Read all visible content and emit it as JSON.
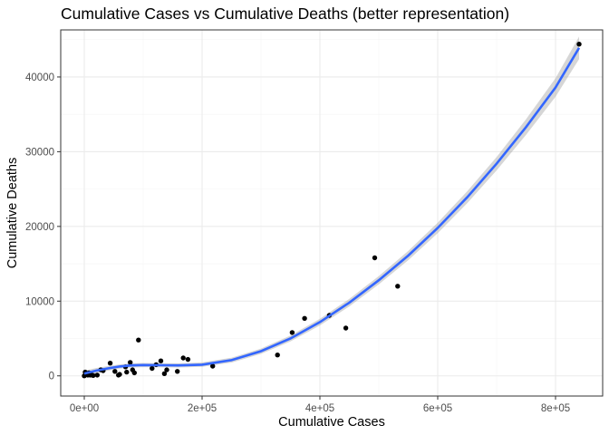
{
  "chart_data": {
    "type": "scatter",
    "title": "Cumulative Cases vs Cumulative Deaths (better representation)",
    "xlabel": "Cumulative Cases",
    "ylabel": "Cumulative Deaths",
    "xlim": [
      -40000,
      880000
    ],
    "ylim": [
      -2700,
      46300
    ],
    "x_ticks": [
      {
        "value": 0,
        "label": "0e+00"
      },
      {
        "value": 200000,
        "label": "2e+05"
      },
      {
        "value": 400000,
        "label": "4e+05"
      },
      {
        "value": 600000,
        "label": "6e+05"
      },
      {
        "value": 800000,
        "label": "8e+05"
      }
    ],
    "y_ticks": [
      {
        "value": 0,
        "label": "0"
      },
      {
        "value": 10000,
        "label": "10000"
      },
      {
        "value": 20000,
        "label": "20000"
      },
      {
        "value": 30000,
        "label": "30000"
      },
      {
        "value": 40000,
        "label": "40000"
      }
    ],
    "x_minor": [
      -100000,
      100000,
      300000,
      500000,
      700000
    ],
    "y_minor": [
      5000,
      15000,
      25000,
      35000,
      45000
    ],
    "grid": true,
    "points": [
      {
        "x": 0,
        "y": 0
      },
      {
        "x": 1500,
        "y": 500
      },
      {
        "x": 3000,
        "y": 200
      },
      {
        "x": 5000,
        "y": 300
      },
      {
        "x": 6000,
        "y": 100
      },
      {
        "x": 8000,
        "y": 400
      },
      {
        "x": 10000,
        "y": 100
      },
      {
        "x": 12000,
        "y": 150
      },
      {
        "x": 15000,
        "y": 50
      },
      {
        "x": 22000,
        "y": 100
      },
      {
        "x": 28000,
        "y": 800
      },
      {
        "x": 32000,
        "y": 700
      },
      {
        "x": 44000,
        "y": 1700
      },
      {
        "x": 52000,
        "y": 600
      },
      {
        "x": 58000,
        "y": 100
      },
      {
        "x": 60000,
        "y": 200
      },
      {
        "x": 70000,
        "y": 1200
      },
      {
        "x": 72000,
        "y": 500
      },
      {
        "x": 78000,
        "y": 1800
      },
      {
        "x": 82000,
        "y": 800
      },
      {
        "x": 85000,
        "y": 400
      },
      {
        "x": 92000,
        "y": 4800
      },
      {
        "x": 115000,
        "y": 1000
      },
      {
        "x": 122000,
        "y": 1500
      },
      {
        "x": 130000,
        "y": 2000
      },
      {
        "x": 136000,
        "y": 300
      },
      {
        "x": 140000,
        "y": 800
      },
      {
        "x": 158000,
        "y": 600
      },
      {
        "x": 168000,
        "y": 2400
      },
      {
        "x": 176000,
        "y": 2200
      },
      {
        "x": 218000,
        "y": 1300
      },
      {
        "x": 328000,
        "y": 2800
      },
      {
        "x": 353000,
        "y": 5800
      },
      {
        "x": 374000,
        "y": 7700
      },
      {
        "x": 416000,
        "y": 8100
      },
      {
        "x": 444000,
        "y": 6400
      },
      {
        "x": 493000,
        "y": 15800
      },
      {
        "x": 532000,
        "y": 12000
      },
      {
        "x": 840000,
        "y": 44400
      }
    ],
    "smooth_line": {
      "method": "loess",
      "color": "#3366ff",
      "x": [
        0,
        20000,
        40000,
        60000,
        80000,
        100000,
        130000,
        160000,
        200000,
        250000,
        300000,
        350000,
        400000,
        450000,
        500000,
        550000,
        600000,
        650000,
        700000,
        750000,
        800000,
        840000
      ],
      "y": [
        300,
        700,
        1000,
        1250,
        1400,
        1450,
        1420,
        1400,
        1500,
        2100,
        3300,
        5000,
        7200,
        9800,
        12800,
        16100,
        19800,
        23900,
        28400,
        33300,
        38600,
        43900
      ],
      "band_half_width": [
        400,
        350,
        300,
        280,
        280,
        280,
        280,
        280,
        300,
        330,
        360,
        400,
        450,
        500,
        560,
        620,
        700,
        800,
        900,
        1050,
        1250,
        1500
      ]
    },
    "colors": {
      "point": "#000000",
      "line": "#3366ff",
      "band": "#999999",
      "grid_major": "#ebebeb",
      "grid_minor": "#f5f5f5",
      "panel_border": "#333333"
    }
  }
}
